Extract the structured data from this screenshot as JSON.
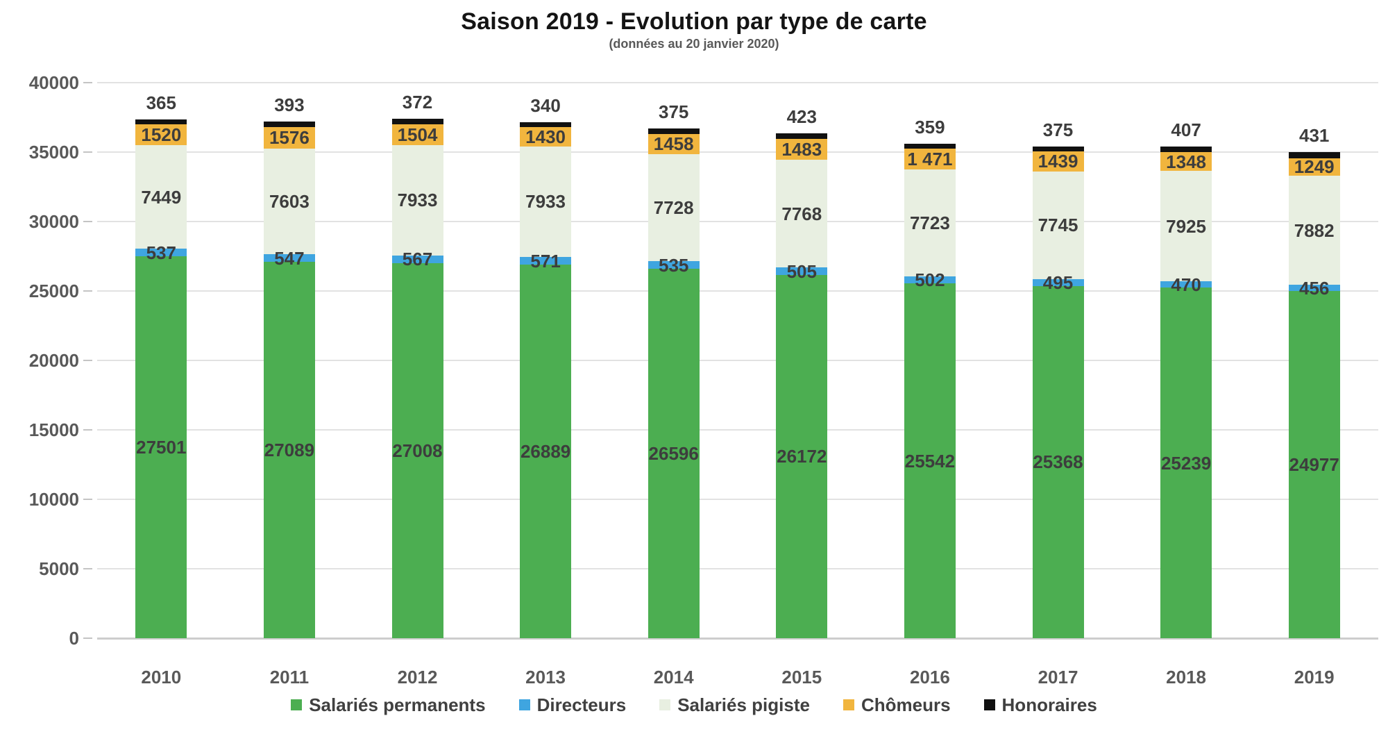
{
  "title": "Saison 2019 - Evolution par type de carte",
  "subtitle": "(données au 20 janvier 2020)",
  "colors": {
    "salaries_permanents": "#4CAE51",
    "directeurs": "#3FA5E0",
    "salaries_pigiste": "#E8EFE1",
    "chomeurs": "#F1B53E",
    "honoraires": "#111111",
    "gridline": "#E2E2E2",
    "axis_text": "#595959",
    "value_text": "#3D3D3D"
  },
  "chart_data": {
    "type": "bar",
    "stacked": true,
    "title": "Saison 2019 - Evolution par type de carte",
    "subtitle": "(données au 20 janvier 2020)",
    "categories": [
      "2010",
      "2011",
      "2012",
      "2013",
      "2014",
      "2015",
      "2016",
      "2017",
      "2018",
      "2019"
    ],
    "series": [
      {
        "name": "Salariés permanents",
        "color": "#4CAE51",
        "values": [
          27501,
          27089,
          27008,
          26889,
          26596,
          26172,
          25542,
          25368,
          25239,
          24977
        ]
      },
      {
        "name": "Directeurs",
        "color": "#3FA5E0",
        "values": [
          537,
          547,
          567,
          571,
          535,
          505,
          502,
          495,
          470,
          456
        ]
      },
      {
        "name": "Salariés pigiste",
        "color": "#E8EFE1",
        "values": [
          7449,
          7603,
          7933,
          7933,
          7728,
          7768,
          7723,
          7745,
          7925,
          7882
        ]
      },
      {
        "name": "Chômeurs",
        "color": "#F1B53E",
        "values": [
          1520,
          1576,
          1504,
          1430,
          1458,
          1483,
          1471,
          1439,
          1348,
          1249
        ],
        "labels": [
          "1520",
          "1576",
          "1504",
          "1430",
          "1458",
          "1483",
          "1 471",
          "1439",
          "1348",
          "1249"
        ]
      },
      {
        "name": "Honoraires",
        "color": "#111111",
        "values": [
          365,
          393,
          372,
          340,
          375,
          423,
          359,
          375,
          407,
          431
        ],
        "label_position": "above"
      }
    ],
    "ylim": [
      0,
      40000
    ],
    "ytick_step": 5000,
    "yticks": [
      "0",
      "5000",
      "10000",
      "15000",
      "20000",
      "25000",
      "30000",
      "35000",
      "40000"
    ],
    "grid": true,
    "legend_position": "bottom",
    "legend": [
      "Salariés permanents",
      "Directeurs",
      "Salariés pigiste",
      "Chômeurs",
      "Honoraires"
    ]
  }
}
